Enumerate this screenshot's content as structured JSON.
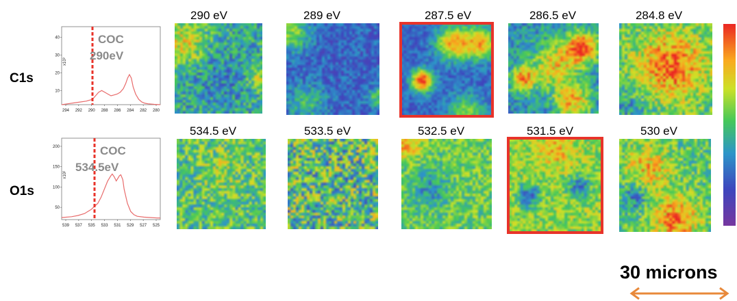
{
  "rows": [
    {
      "label": "C1s",
      "spectrum": {
        "marker_label": "COC",
        "marker_energy": "290eV",
        "x_ticks": [
          "294",
          "292",
          "290",
          "288",
          "286",
          "284",
          "282",
          "280"
        ],
        "y_ticks": [
          "40",
          "30",
          "20",
          "10"
        ],
        "y_multiplier": "x10³",
        "marker_x": 290,
        "x_range": [
          295,
          279
        ],
        "y_range": [
          2,
          46
        ],
        "curve": [
          [
            295,
            2
          ],
          [
            294,
            2.5
          ],
          [
            293,
            3
          ],
          [
            292,
            3.5
          ],
          [
            291,
            4
          ],
          [
            290,
            5
          ],
          [
            289.5,
            7
          ],
          [
            289,
            9
          ],
          [
            288.5,
            10
          ],
          [
            288,
            9
          ],
          [
            287.5,
            8
          ],
          [
            287,
            7
          ],
          [
            286.5,
            7.5
          ],
          [
            286,
            8
          ],
          [
            285.5,
            9
          ],
          [
            285,
            11
          ],
          [
            284.6,
            14
          ],
          [
            284.3,
            17
          ],
          [
            284,
            19
          ],
          [
            283.7,
            17
          ],
          [
            283.4,
            12
          ],
          [
            283,
            8
          ],
          [
            282.5,
            5
          ],
          [
            282,
            3.5
          ],
          [
            281.5,
            2.8
          ],
          [
            281,
            2.5
          ],
          [
            280,
            2.2
          ],
          [
            279,
            2
          ]
        ]
      },
      "maps": [
        {
          "title": "290 eV",
          "seed": 11,
          "pattern": "low"
        },
        {
          "title": "289 eV",
          "seed": 23,
          "pattern": "dark"
        },
        {
          "title": "287.5 eV",
          "seed": 37,
          "pattern": "spots",
          "highlight": true
        },
        {
          "title": "286.5 eV",
          "seed": 41,
          "pattern": "spots2"
        },
        {
          "title": "284.8 eV",
          "seed": 53,
          "pattern": "high"
        }
      ]
    },
    {
      "label": "O1s",
      "spectrum": {
        "marker_label": "COC",
        "marker_energy": "534.5eV",
        "x_ticks": [
          "539",
          "537",
          "535",
          "533",
          "531",
          "529",
          "527",
          "525"
        ],
        "y_ticks": [
          "200",
          "150",
          "100",
          "50"
        ],
        "y_multiplier": "x10²",
        "marker_x": 534.5,
        "x_range": [
          539.5,
          524.5
        ],
        "y_range": [
          20,
          220
        ],
        "curve": [
          [
            539.5,
            25
          ],
          [
            538,
            27
          ],
          [
            537,
            30
          ],
          [
            536,
            35
          ],
          [
            535,
            45
          ],
          [
            534,
            60
          ],
          [
            533.5,
            75
          ],
          [
            533,
            95
          ],
          [
            532.5,
            115
          ],
          [
            532,
            128
          ],
          [
            531.8,
            132
          ],
          [
            531.5,
            125
          ],
          [
            531.2,
            115
          ],
          [
            531,
            120
          ],
          [
            530.7,
            128
          ],
          [
            530.5,
            130
          ],
          [
            530.2,
            118
          ],
          [
            530,
            95
          ],
          [
            529.5,
            60
          ],
          [
            529,
            40
          ],
          [
            528.5,
            32
          ],
          [
            528,
            28
          ],
          [
            527,
            26
          ],
          [
            526,
            25
          ],
          [
            525,
            24
          ],
          [
            524.5,
            24
          ]
        ]
      },
      "maps": [
        {
          "title": "534.5 eV",
          "seed": 61,
          "pattern": "noise"
        },
        {
          "title": "533.5 eV",
          "seed": 73,
          "pattern": "noise2"
        },
        {
          "title": "532.5 eV",
          "seed": 87,
          "pattern": "mid"
        },
        {
          "title": "531.5 eV",
          "seed": 97,
          "pattern": "mid2",
          "highlight": true
        },
        {
          "title": "530 eV",
          "seed": 103,
          "pattern": "high2"
        }
      ]
    }
  ],
  "scale_bar": {
    "label": "30 microns"
  },
  "colors": {
    "highlight": "#e8332a",
    "marker": "#e8332a",
    "curve": "#e86b6b",
    "arrow": "#e8893a"
  },
  "colormap": "rainbow (violet-blue-green-yellow-red)"
}
